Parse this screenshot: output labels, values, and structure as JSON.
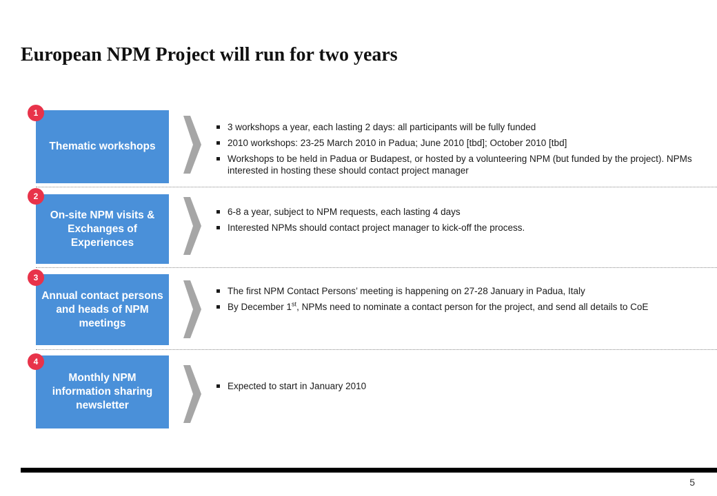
{
  "title": "European NPM Project will run for two years",
  "rows": [
    {
      "num": "1",
      "label": "Thematic workshops",
      "bullets": [
        "3 workshops a year, each lasting 2 days: all participants will be fully funded",
        "2010 workshops: 23-25 March 2010 in Padua; June 2010 [tbd]; October 2010 [tbd]",
        "Workshops to be held in Padua or Budapest, or hosted by a volunteering NPM (but funded by the project). NPMs interested in hosting these should contact project manager"
      ]
    },
    {
      "num": "2",
      "label": "On-site NPM visits & Exchanges of Experiences",
      "bullets": [
        "6-8 a year, subject to NPM requests, each lasting 4 days",
        "Interested NPMs should contact project manager to kick-off the process."
      ]
    },
    {
      "num": "3",
      "label": "Annual contact persons and heads of NPM meetings",
      "bullets": [
        "The first NPM Contact Persons’ meeting is happening on 27-28 January in Padua, Italy"
      ],
      "bullet_sup": {
        "before": "By December 1",
        "sup": "st",
        "after": ", NPMs need to nominate a contact person for the project, and send all details to CoE"
      }
    },
    {
      "num": "4",
      "label": "Monthly NPM information sharing newsletter",
      "bullets": [
        "Expected to start in January 2010"
      ]
    }
  ],
  "page_number": "5",
  "colors": {
    "box": "#4a90d9",
    "badge": "#e8334a",
    "chevron": "#a6a6a6"
  }
}
